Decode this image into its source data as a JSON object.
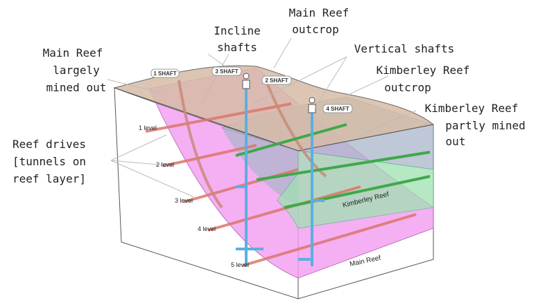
{
  "callouts": [
    {
      "lines": [
        "Main Reef",
        "largely",
        "mined out"
      ]
    },
    {
      "lines": [
        "Incline",
        "shafts"
      ]
    },
    {
      "lines": [
        "Main Reef",
        "outcrop"
      ]
    },
    {
      "lines": [
        "Vertical shafts"
      ]
    },
    {
      "lines": [
        "Kimberley Reef",
        "outcrop"
      ]
    },
    {
      "lines": [
        "Kimberley Reef",
        "partly mined",
        "out"
      ]
    },
    {
      "lines": [
        "Reef drives",
        "[tunnels on",
        "reef layer]"
      ]
    }
  ],
  "shafts": [
    "1 SHAFT",
    "3 SHAFT",
    "2 SHAFT",
    "4 SHAFT"
  ],
  "levels": [
    "1 level",
    "2 level",
    "3 level",
    "4 level",
    "5 level"
  ],
  "reef_labels": [
    "Kimberley Reef",
    "Main Reef"
  ]
}
